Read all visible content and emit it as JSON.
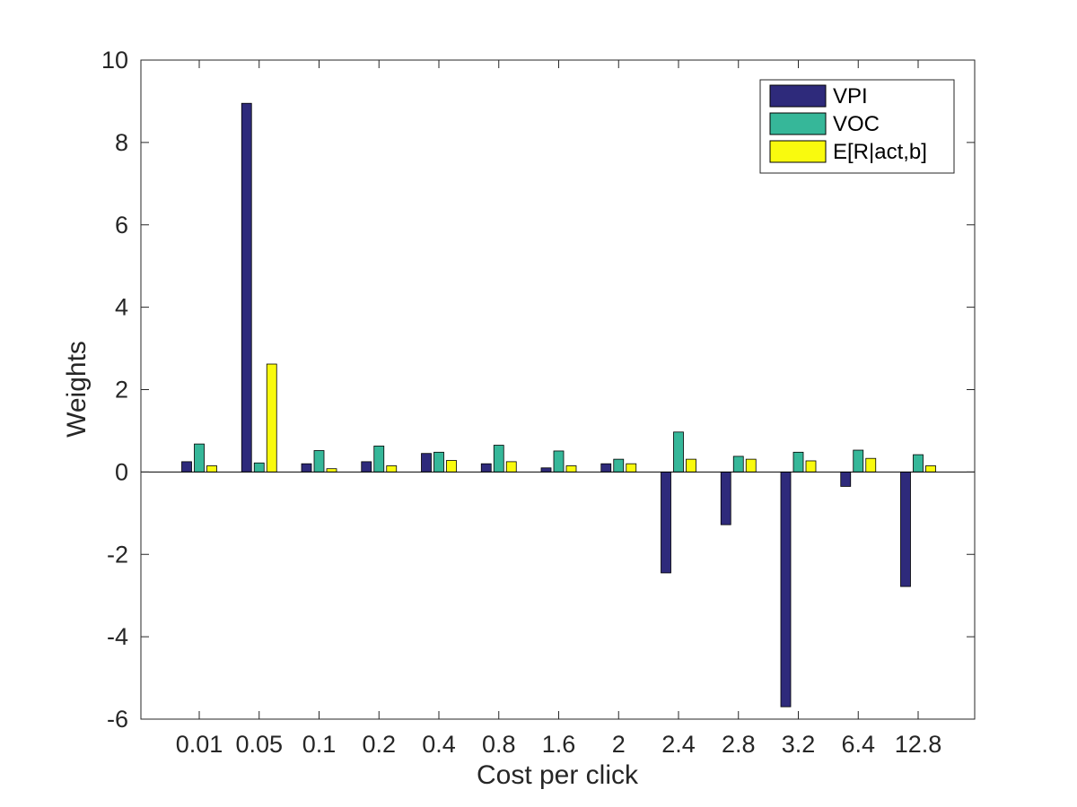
{
  "chart_data": {
    "type": "bar",
    "xlabel": "Cost per click",
    "ylabel": "Weights",
    "ylim": [
      -6,
      10
    ],
    "yticks": [
      -6,
      -4,
      -2,
      0,
      2,
      4,
      6,
      8,
      10
    ],
    "ytick_labels": [
      "-6",
      "-4",
      "-2",
      "0",
      "2",
      "4",
      "6",
      "8",
      "10"
    ],
    "categories": [
      "0.01",
      "0.05",
      "0.1",
      "0.2",
      "0.4",
      "0.8",
      "1.6",
      "2",
      "2.4",
      "2.8",
      "3.2",
      "6.4",
      "12.8"
    ],
    "series": [
      {
        "name": "VPI",
        "color": "#2e2a7b",
        "values": [
          0.25,
          8.95,
          0.2,
          0.25,
          0.45,
          0.2,
          0.1,
          0.2,
          -2.45,
          -1.28,
          -5.7,
          -0.35,
          -2.78
        ]
      },
      {
        "name": "VOC",
        "color": "#36b799",
        "values": [
          0.68,
          0.22,
          0.52,
          0.63,
          0.48,
          0.65,
          0.51,
          0.31,
          0.97,
          0.38,
          0.48,
          0.53,
          0.42
        ]
      },
      {
        "name": "E[R|act,b]",
        "color": "#f9fa0e",
        "values": [
          0.15,
          2.62,
          0.08,
          0.15,
          0.28,
          0.25,
          0.15,
          0.2,
          0.31,
          0.31,
          0.27,
          0.33,
          0.15
        ]
      }
    ],
    "legend_position": "top-right",
    "grid": false
  }
}
